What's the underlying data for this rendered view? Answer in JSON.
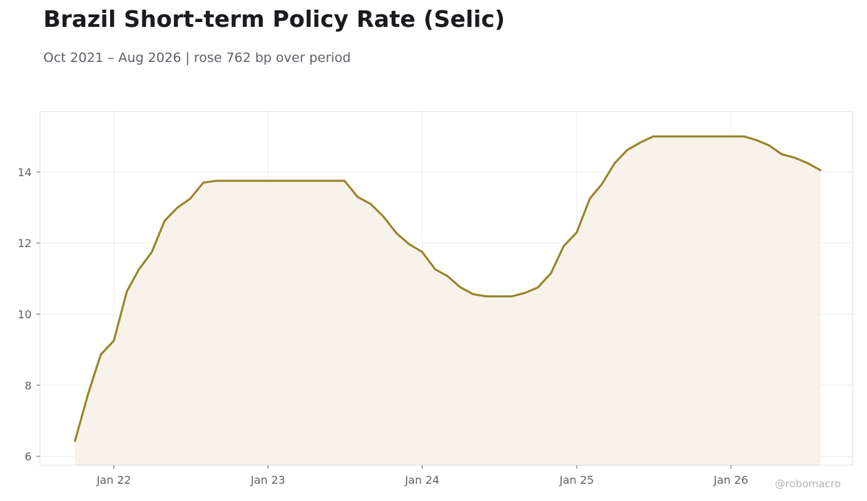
{
  "title": "Brazil Short-term Policy Rate (Selic)",
  "subtitle": "Oct 2021 – Aug 2026 | rose 762 bp over period",
  "credit": "@robomacro",
  "colors": {
    "line": "#9a8228",
    "fill": "#f7f3eb",
    "grid": "#ececec",
    "frame": "#dcdcdc",
    "text": "#5f6068"
  },
  "chart_data": {
    "type": "area",
    "title": "Brazil Short-term Policy Rate (Selic)",
    "subtitle": "Oct 2021 – Aug 2026 | rose 762 bp over period",
    "xlabel": "",
    "ylabel": "",
    "ylim": [
      5.75,
      15.7
    ],
    "yticks": [
      6,
      8,
      10,
      12,
      14
    ],
    "xlim": [
      "2021-07-10",
      "2026-10-16"
    ],
    "xticks": [
      {
        "date": "2022-01-01",
        "label": "Jan 22"
      },
      {
        "date": "2023-01-01",
        "label": "Jan 23"
      },
      {
        "date": "2024-01-01",
        "label": "Jan 24"
      },
      {
        "date": "2025-01-01",
        "label": "Jan 25"
      },
      {
        "date": "2026-01-01",
        "label": "Jan 26"
      }
    ],
    "grid": true,
    "series": [
      {
        "points": [
          [
            "2021-10-01",
            6.43
          ],
          [
            "2021-11-01",
            7.75
          ],
          [
            "2021-12-01",
            8.86
          ],
          [
            "2022-01-01",
            9.25
          ],
          [
            "2022-02-01",
            10.64
          ],
          [
            "2022-03-01",
            11.25
          ],
          [
            "2022-04-01",
            11.75
          ],
          [
            "2022-05-01",
            12.62
          ],
          [
            "2022-06-01",
            13.0
          ],
          [
            "2022-07-01",
            13.25
          ],
          [
            "2022-08-01",
            13.7
          ],
          [
            "2022-09-01",
            13.75
          ],
          [
            "2022-10-01",
            13.75
          ],
          [
            "2022-11-01",
            13.75
          ],
          [
            "2022-12-01",
            13.75
          ],
          [
            "2023-01-01",
            13.75
          ],
          [
            "2023-02-01",
            13.75
          ],
          [
            "2023-03-01",
            13.75
          ],
          [
            "2023-04-01",
            13.75
          ],
          [
            "2023-05-01",
            13.75
          ],
          [
            "2023-06-01",
            13.75
          ],
          [
            "2023-07-01",
            13.75
          ],
          [
            "2023-08-01",
            13.3
          ],
          [
            "2023-09-01",
            13.1
          ],
          [
            "2023-10-01",
            12.75
          ],
          [
            "2023-11-01",
            12.28
          ],
          [
            "2023-12-01",
            11.97
          ],
          [
            "2024-01-01",
            11.75
          ],
          [
            "2024-02-01",
            11.26
          ],
          [
            "2024-03-01",
            11.07
          ],
          [
            "2024-04-01",
            10.75
          ],
          [
            "2024-05-01",
            10.56
          ],
          [
            "2024-06-01",
            10.5
          ],
          [
            "2024-07-01",
            10.5
          ],
          [
            "2024-08-01",
            10.5
          ],
          [
            "2024-09-01",
            10.6
          ],
          [
            "2024-10-01",
            10.75
          ],
          [
            "2024-11-01",
            11.15
          ],
          [
            "2024-12-01",
            11.91
          ],
          [
            "2025-01-01",
            12.3
          ],
          [
            "2025-02-01",
            13.25
          ],
          [
            "2025-03-01",
            13.65
          ],
          [
            "2025-04-01",
            14.25
          ],
          [
            "2025-05-01",
            14.62
          ],
          [
            "2025-06-01",
            14.83
          ],
          [
            "2025-07-01",
            15.0
          ],
          [
            "2025-08-01",
            15.0
          ],
          [
            "2025-09-01",
            15.0
          ],
          [
            "2025-10-01",
            15.0
          ],
          [
            "2025-11-01",
            15.0
          ],
          [
            "2025-12-01",
            15.0
          ],
          [
            "2026-01-01",
            15.0
          ],
          [
            "2026-02-01",
            15.0
          ],
          [
            "2026-03-01",
            14.9
          ],
          [
            "2026-04-01",
            14.75
          ],
          [
            "2026-05-01",
            14.5
          ],
          [
            "2026-06-01",
            14.4
          ],
          [
            "2026-07-01",
            14.25
          ],
          [
            "2026-08-01",
            14.05
          ]
        ]
      }
    ]
  }
}
